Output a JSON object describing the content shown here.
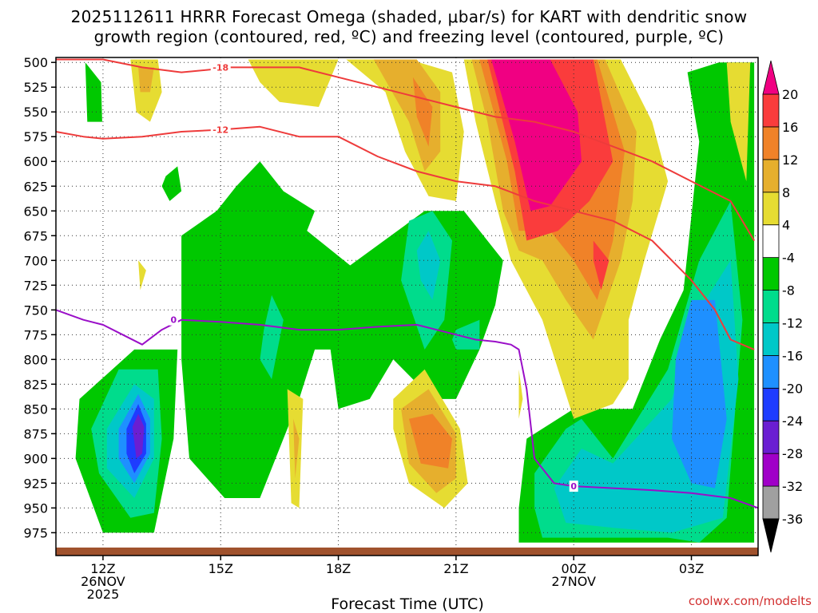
{
  "title": {
    "line1": "2025112611 HRRR Forecast Omega (shaded, μbar/s) for KART with dendritic snow",
    "line2": "growth region (contoured, red, ºC) and freezing level (contoured, purple, ºC)"
  },
  "credit": "coolwx.com/modelts",
  "chart_data": {
    "type": "heatmap",
    "xlabel": "Forecast Time (UTC)",
    "ylabel": "",
    "x_range": [
      10.8,
      28.7
    ],
    "y_range": [
      495,
      990
    ],
    "y_ticks": [
      500,
      525,
      550,
      575,
      600,
      625,
      650,
      675,
      700,
      725,
      750,
      775,
      800,
      825,
      850,
      875,
      900,
      925,
      950,
      975
    ],
    "x_ticks": [
      {
        "hour": 12,
        "label": [
          "12Z",
          "26NOV",
          "2025"
        ]
      },
      {
        "hour": 15,
        "label": [
          "15Z"
        ]
      },
      {
        "hour": 18,
        "label": [
          "18Z"
        ]
      },
      {
        "hour": 21,
        "label": [
          "21Z"
        ]
      },
      {
        "hour": 24,
        "label": [
          "00Z",
          "27NOV"
        ]
      },
      {
        "hour": 27,
        "label": [
          "03Z"
        ]
      }
    ],
    "colorbar": {
      "levels": [
        -36,
        -32,
        -28,
        -24,
        -20,
        -16,
        -12,
        -8,
        -4,
        4,
        8,
        12,
        16,
        20
      ],
      "colors": [
        "#a0a0a0",
        "#a000c8",
        "#6a1ed2",
        "#1e3cff",
        "#1e90ff",
        "#00c8c8",
        "#00dc8c",
        "#00c800",
        "#ffffff",
        "#e6dc32",
        "#e6af2d",
        "#f08228",
        "#fa3c3c",
        "#f00082"
      ],
      "under_color": "#000000",
      "over_color": "#f00082"
    },
    "omega_regions": [
      {
        "value": -8,
        "x": [
          11.55,
          11.95,
          11.98,
          11.6
        ],
        "y": [
          500,
          520,
          560,
          560
        ]
      },
      {
        "value": -8,
        "x": [
          11.4,
          12.8,
          13.9,
          13.8,
          13.3,
          12.0,
          11.3
        ],
        "y": [
          840,
          790,
          790,
          880,
          975,
          975,
          900
        ]
      },
      {
        "value": -12,
        "x": [
          11.7,
          12.4,
          13.4,
          13.5,
          13.3,
          12.7,
          11.9
        ],
        "y": [
          870,
          810,
          810,
          880,
          955,
          960,
          915
        ]
      },
      {
        "value": -16,
        "x": [
          12.1,
          12.8,
          13.3,
          13.3,
          12.8,
          12.1
        ],
        "y": [
          870,
          825,
          840,
          900,
          940,
          910
        ]
      },
      {
        "value": -20,
        "x": [
          12.4,
          12.9,
          13.2,
          13.2,
          12.8,
          12.4
        ],
        "y": [
          870,
          835,
          860,
          895,
          925,
          900
        ]
      },
      {
        "value": -24,
        "x": [
          12.6,
          12.9,
          13.1,
          13.1,
          12.8,
          12.6
        ],
        "y": [
          870,
          845,
          865,
          895,
          915,
          895
        ]
      },
      {
        "value": -28,
        "x": [
          12.75,
          12.9,
          13.05,
          13.0,
          12.85
        ],
        "y": [
          868,
          855,
          868,
          895,
          900
        ]
      },
      {
        "value": -8,
        "x": [
          13.6,
          13.9,
          14.0,
          13.7,
          13.5
        ],
        "y": [
          615,
          605,
          630,
          640,
          625
        ]
      },
      {
        "value": -8,
        "x": [
          14.0,
          14.9,
          15.4,
          16.0,
          16.6,
          17.4,
          17.2,
          18.3,
          20.2,
          21.2,
          22.2,
          22.0,
          21.6,
          21.0,
          20.4,
          19.4,
          18.8,
          18.0,
          17.8,
          17.4,
          17.0,
          16.4,
          16.0,
          15.1,
          14.2,
          14.0,
          14.0
        ],
        "y": [
          675,
          650,
          625,
          600,
          630,
          650,
          670,
          705,
          650,
          650,
          700,
          745,
          790,
          840,
          840,
          800,
          840,
          850,
          790,
          790,
          840,
          900,
          940,
          940,
          900,
          800,
          700
        ]
      },
      {
        "value": -12,
        "x": [
          19.8,
          20.4,
          20.9,
          20.7,
          20.2,
          19.6
        ],
        "y": [
          660,
          650,
          680,
          760,
          790,
          720
        ]
      },
      {
        "value": -16,
        "x": [
          20.0,
          20.3,
          20.6,
          20.4,
          20.1
        ],
        "y": [
          690,
          670,
          700,
          740,
          720
        ]
      },
      {
        "value": -12,
        "x": [
          16.1,
          16.3,
          16.6,
          16.3,
          16.0
        ],
        "y": [
          770,
          735,
          760,
          820,
          800
        ]
      },
      {
        "value": -12,
        "x": [
          21.0,
          21.6,
          21.6,
          21.0,
          20.9
        ],
        "y": [
          770,
          760,
          790,
          790,
          780
        ]
      },
      {
        "value": -8,
        "x": [
          22.8,
          24.0,
          25.5,
          26.2,
          26.8,
          27.2,
          26.9,
          27.7,
          28.6,
          28.6,
          28.1,
          27.1,
          26.0,
          24.0,
          22.6,
          22.6
        ],
        "y": [
          880,
          850,
          850,
          780,
          730,
          580,
          510,
          500,
          500,
          985,
          985,
          985,
          985,
          985,
          985,
          950
        ]
      },
      {
        "value": -12,
        "x": [
          23.0,
          23.8,
          24.2,
          25.0,
          26.4,
          27.2,
          28.0,
          28.3,
          27.9,
          27.2,
          26.4,
          25.0,
          23.2,
          23.0
        ],
        "y": [
          915,
          870,
          860,
          900,
          810,
          700,
          640,
          760,
          960,
          985,
          980,
          980,
          980,
          950
        ]
      },
      {
        "value": -16,
        "x": [
          23.5,
          24.2,
          25.0,
          26.5,
          27.2,
          28.0,
          28.2,
          27.8,
          26.5,
          25.0,
          23.8
        ],
        "y": [
          930,
          890,
          905,
          840,
          750,
          700,
          820,
          960,
          975,
          970,
          965
        ]
      },
      {
        "value": -20,
        "x": [
          26.6,
          27.0,
          27.6,
          27.9,
          27.6,
          27.0,
          26.5
        ],
        "y": [
          800,
          740,
          740,
          860,
          930,
          925,
          880
        ]
      },
      {
        "value": -16,
        "x": [
          23.9,
          24.2,
          24.4,
          24.1
        ],
        "y": [
          920,
          900,
          925,
          945
        ]
      },
      {
        "value": 4,
        "x": [
          12.7,
          13.4,
          13.5,
          13.2,
          12.85
        ],
        "y": [
          497,
          497,
          530,
          560,
          550
        ]
      },
      {
        "value": 8,
        "x": [
          12.9,
          13.3,
          13.2,
          12.95
        ],
        "y": [
          505,
          505,
          530,
          530
        ]
      },
      {
        "value": 4,
        "x": [
          15.7,
          18.0,
          17.5,
          16.5,
          16.0
        ],
        "y": [
          497,
          497,
          545,
          540,
          520
        ]
      },
      {
        "value": 4,
        "x": [
          18.2,
          19.8,
          20.9,
          21.2,
          21.0,
          20.3,
          19.7,
          19.2
        ],
        "y": [
          497,
          497,
          510,
          570,
          640,
          635,
          590,
          530
        ]
      },
      {
        "value": 8,
        "x": [
          18.9,
          20.0,
          20.6,
          20.6,
          20.2,
          19.8
        ],
        "y": [
          497,
          497,
          530,
          590,
          610,
          560
        ]
      },
      {
        "value": 12,
        "x": [
          19.9,
          20.4,
          20.3,
          20.0
        ],
        "y": [
          515,
          545,
          585,
          555
        ]
      },
      {
        "value": 4,
        "x": [
          21.2,
          25.2,
          26.0,
          26.4,
          25.8,
          25.4,
          25.4,
          25.0,
          24.0,
          23.2,
          22.4,
          22.0,
          21.5
        ],
        "y": [
          497,
          497,
          560,
          620,
          700,
          760,
          820,
          845,
          860,
          760,
          700,
          640,
          560
        ]
      },
      {
        "value": 8,
        "x": [
          21.4,
          24.8,
          25.6,
          25.5,
          25.2,
          24.5,
          23.8,
          23.2,
          22.6,
          22.2,
          21.8
        ],
        "y": [
          497,
          497,
          570,
          640,
          700,
          780,
          740,
          700,
          690,
          650,
          560
        ]
      },
      {
        "value": 12,
        "x": [
          21.6,
          24.6,
          25.3,
          25.0,
          24.6,
          24.0,
          23.4,
          22.6,
          22.3
        ],
        "y": [
          497,
          497,
          590,
          680,
          740,
          700,
          670,
          670,
          600
        ]
      },
      {
        "value": 16,
        "x": [
          21.8,
          24.5,
          25.0,
          24.4,
          23.6,
          22.8,
          22.5
        ],
        "y": [
          497,
          497,
          600,
          640,
          670,
          680,
          610
        ]
      },
      {
        "value": 20,
        "x": [
          21.9,
          23.4,
          24.1,
          24.2,
          23.4,
          22.9,
          22.5
        ],
        "y": [
          497,
          497,
          550,
          600,
          645,
          650,
          580
        ]
      },
      {
        "value": 16,
        "x": [
          24.5,
          24.9,
          24.7,
          24.5
        ],
        "y": [
          680,
          700,
          730,
          700
        ]
      },
      {
        "value": 4,
        "x": [
          27.9,
          28.5,
          28.4,
          28.0
        ],
        "y": [
          500,
          500,
          620,
          560
        ]
      },
      {
        "value": 4,
        "x": [
          12.9,
          13.1,
          12.95
        ],
        "y": [
          700,
          710,
          730
        ]
      },
      {
        "value": 4,
        "x": [
          16.7,
          17.1,
          17.0,
          16.8
        ],
        "y": [
          830,
          840,
          950,
          945
        ]
      },
      {
        "value": 8,
        "x": [
          16.85,
          17.0,
          16.9
        ],
        "y": [
          860,
          880,
          920
        ]
      },
      {
        "value": 4,
        "x": [
          19.4,
          20.2,
          21.1,
          21.3,
          20.7,
          19.8,
          19.4
        ],
        "y": [
          840,
          810,
          870,
          925,
          950,
          925,
          870
        ]
      },
      {
        "value": 8,
        "x": [
          19.6,
          20.3,
          21.0,
          21.0,
          20.5,
          19.8
        ],
        "y": [
          850,
          830,
          875,
          920,
          935,
          905
        ]
      },
      {
        "value": 12,
        "x": [
          19.8,
          20.4,
          20.9,
          20.8,
          20.1
        ],
        "y": [
          860,
          855,
          880,
          910,
          905
        ]
      },
      {
        "value": 4,
        "x": [
          22.6,
          22.7,
          22.6
        ],
        "y": [
          810,
          840,
          860
        ]
      }
    ],
    "dgz_contours": [
      {
        "label": "-18",
        "x": [
          10.8,
          11.5,
          12.0,
          13.0,
          14.0,
          14.8,
          15.0,
          16.0,
          17.0,
          18.0,
          19.0,
          20.0,
          21.0,
          22.0,
          23.0,
          24.0,
          25.0,
          26.0
        ],
        "y": [
          497,
          497,
          497,
          505,
          510,
          507,
          505,
          505,
          505,
          515,
          525,
          535,
          545,
          555,
          560,
          570,
          585,
          600
        ]
      },
      {
        "label": "-12",
        "x": [
          10.8,
          11.5,
          12.0,
          13.0,
          14.0,
          15.0,
          16.0,
          17.0,
          18.0,
          19.0,
          20.0,
          21.0,
          22.0,
          23.0,
          24.0,
          25.0,
          26.0,
          27.0,
          27.6,
          28.0,
          28.6
        ],
        "y": [
          570,
          575,
          577,
          575,
          570,
          568,
          565,
          575,
          575,
          595,
          610,
          620,
          625,
          640,
          650,
          660,
          680,
          720,
          750,
          780,
          790
        ]
      },
      {
        "label": "-18",
        "x": [
          26.0,
          27.0,
          28.0,
          28.6
        ],
        "y": [
          600,
          620,
          640,
          680
        ]
      }
    ],
    "freezing_level": {
      "label": "0",
      "x": [
        10.8,
        11.5,
        12.0,
        12.5,
        13.0,
        13.5,
        14.0,
        15.0,
        16.0,
        17.0,
        18.0,
        19.0,
        20.0,
        21.0,
        21.5,
        22.0,
        22.4,
        22.6,
        22.8,
        23.0,
        23.5,
        24.0,
        25.0,
        26.0,
        27.0,
        28.0,
        28.7
      ],
      "y": [
        750,
        760,
        765,
        775,
        785,
        770,
        760,
        762,
        765,
        770,
        770,
        767,
        765,
        775,
        780,
        782,
        785,
        790,
        830,
        900,
        925,
        928,
        930,
        932,
        935,
        940,
        950
      ]
    }
  }
}
